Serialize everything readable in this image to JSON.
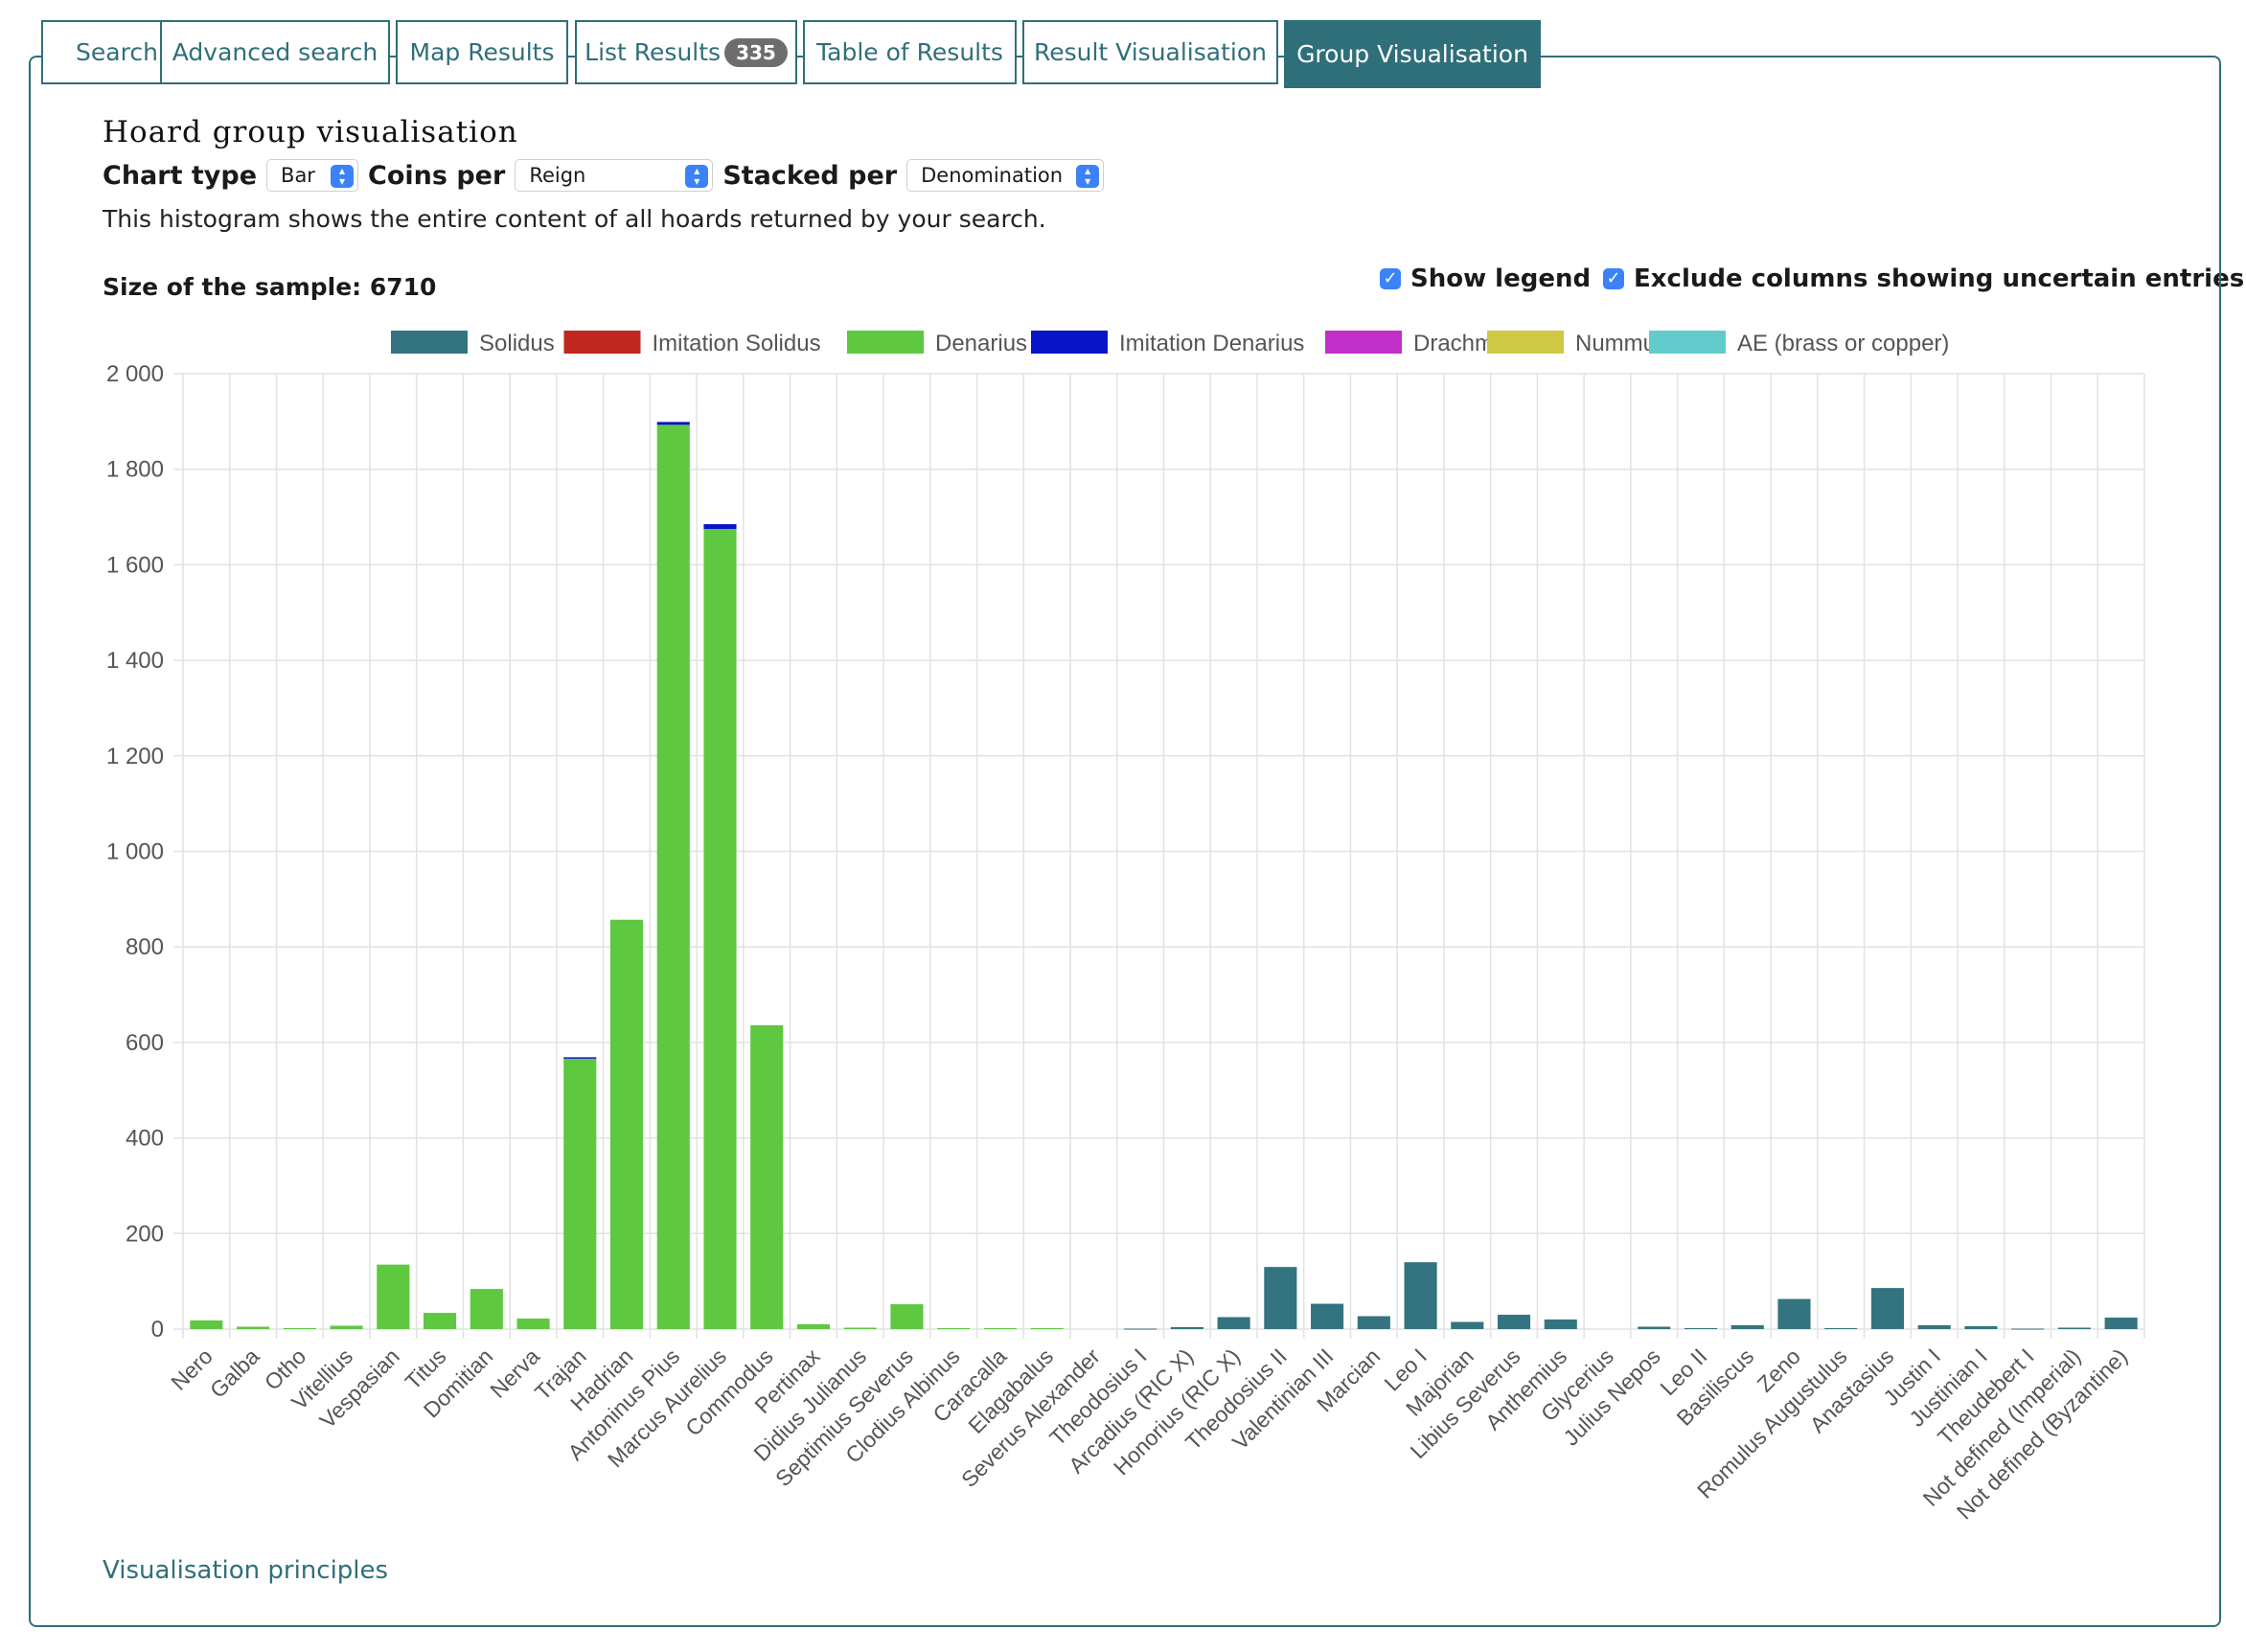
{
  "tabs": [
    {
      "label": "Search"
    },
    {
      "label": "Advanced search"
    },
    {
      "label": "Map Results"
    },
    {
      "label": "List Results",
      "badge": "335"
    },
    {
      "label": "Table of Results"
    },
    {
      "label": "Result Visualisation"
    },
    {
      "label": "Group Visualisation",
      "active": true
    }
  ],
  "heading": "Hoard group visualisation",
  "controls": {
    "chart_type_label": "Chart type",
    "chart_type_value": "Bar",
    "coins_per_label": "Coins per",
    "coins_per_value": "Reign",
    "stacked_per_label": "Stacked per",
    "stacked_per_value": "Denomination"
  },
  "description": "This histogram shows the entire content of all hoards returned by your search.",
  "sample_size": "Size of the sample: 6710",
  "show_legend_label": "Show legend",
  "exclude_uncertain_label": "Exclude columns showing uncertain entries",
  "principles_link": "Visualisation principles",
  "chart_data": {
    "type": "bar",
    "stacked": true,
    "title": "",
    "xlabel": "",
    "ylabel": "",
    "ylim": [
      0,
      2000
    ],
    "yticks": [
      0,
      200,
      400,
      600,
      800,
      1000,
      1200,
      1400,
      1600,
      1800,
      2000
    ],
    "ytick_labels": [
      "0",
      "200",
      "400",
      "600",
      "800",
      "1 000",
      "1 200",
      "1 400",
      "1 600",
      "1 800",
      "2 000"
    ],
    "grid": true,
    "legend_position": "top",
    "categories": [
      "Nero",
      "Galba",
      "Otho",
      "Vitellius",
      "Vespasian",
      "Titus",
      "Domitian",
      "Nerva",
      "Trajan",
      "Hadrian",
      "Antoninus Pius",
      "Marcus Aurelius",
      "Commodus",
      "Pertinax",
      "Didius Julianus",
      "Septimius Severus",
      "Clodius Albinus",
      "Caracalla",
      "Elagabalus",
      "Severus Alexander",
      "Theodosius I",
      "Arcadius (RIC X)",
      "Honorius (RIC X)",
      "Theodosius II",
      "Valentinian III",
      "Marcian",
      "Leo I",
      "Majorian",
      "Libius Severus",
      "Anthemius",
      "Glycerius",
      "Julius Nepos",
      "Leo II",
      "Basiliscus",
      "Zeno",
      "Romulus Augustulus",
      "Anastasius",
      "Justin I",
      "Justinian I",
      "Theudebert I",
      "Not defined (Imperial)",
      "Not defined (Byzantine)"
    ],
    "series": [
      {
        "name": "Solidus",
        "color": "#337480",
        "values": [
          0,
          0,
          0,
          0,
          0,
          0,
          0,
          0,
          0,
          0,
          0,
          0,
          0,
          0,
          0,
          0,
          0,
          0,
          0,
          0,
          1,
          4,
          25,
          130,
          53,
          27,
          140,
          15,
          30,
          20,
          0,
          5,
          2,
          8,
          63,
          2,
          86,
          8,
          6,
          1,
          3,
          24
        ]
      },
      {
        "name": "Imitation Solidus",
        "color": "#c0281f",
        "values": [
          0,
          0,
          0,
          0,
          0,
          0,
          0,
          0,
          0,
          0,
          0,
          0,
          0,
          0,
          0,
          0,
          0,
          0,
          0,
          0,
          0,
          0,
          0,
          0,
          0,
          0,
          0,
          0,
          0,
          0,
          0,
          0,
          0,
          0,
          0,
          0,
          0,
          0,
          0,
          0,
          0,
          0
        ]
      },
      {
        "name": "Denarius",
        "color": "#5ec840",
        "values": [
          18,
          5,
          2,
          7,
          135,
          34,
          84,
          22,
          566,
          857,
          1893,
          1675,
          636,
          10,
          3,
          52,
          2,
          2,
          2,
          0,
          0,
          0,
          0,
          0,
          0,
          0,
          0,
          0,
          0,
          0,
          0,
          0,
          0,
          0,
          0,
          0,
          0,
          0,
          0,
          0,
          0,
          0
        ]
      },
      {
        "name": "Imitation Denarius",
        "color": "#0a14c8",
        "values": [
          0,
          0,
          0,
          0,
          0,
          0,
          0,
          0,
          3,
          0,
          6,
          10,
          0,
          0,
          0,
          0,
          0,
          0,
          0,
          0,
          0,
          0,
          0,
          0,
          0,
          0,
          0,
          0,
          0,
          0,
          0,
          0,
          0,
          0,
          0,
          0,
          0,
          0,
          0,
          0,
          0,
          0
        ]
      },
      {
        "name": "Drachm",
        "color": "#c030c8",
        "values": [
          0,
          0,
          0,
          0,
          0,
          0,
          0,
          0,
          0,
          0,
          0,
          0,
          0,
          0,
          0,
          0,
          0,
          0,
          0,
          0,
          0,
          0,
          0,
          0,
          0,
          0,
          0,
          0,
          0,
          0,
          0,
          0,
          0,
          0,
          0,
          0,
          0,
          0,
          0,
          0,
          0,
          0
        ]
      },
      {
        "name": "Nummus",
        "color": "#cfc842",
        "values": [
          0,
          0,
          0,
          0,
          0,
          0,
          0,
          0,
          0,
          0,
          0,
          0,
          0,
          0,
          0,
          0,
          0,
          0,
          0,
          0,
          0,
          0,
          0,
          0,
          0,
          0,
          0,
          0,
          0,
          0,
          0,
          0,
          0,
          0,
          0,
          0,
          0,
          0,
          0,
          0,
          0,
          0
        ]
      },
      {
        "name": "AE (brass or copper)",
        "color": "#62cccc",
        "values": [
          0,
          0,
          0,
          0,
          0,
          0,
          0,
          0,
          0,
          0,
          0,
          0,
          0,
          0,
          0,
          0,
          0,
          0,
          0,
          0,
          0,
          0,
          0,
          0,
          0,
          0,
          0,
          0,
          0,
          0,
          0,
          0,
          0,
          0,
          0,
          0,
          0,
          0,
          0,
          0,
          0,
          0
        ]
      }
    ]
  }
}
